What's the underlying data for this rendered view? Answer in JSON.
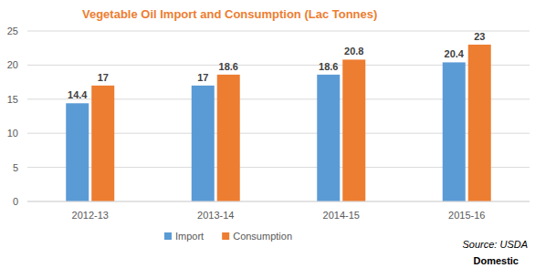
{
  "chart_data": {
    "type": "bar",
    "title": "Vegetable Oil Import and Consumption (Lac Tonnes)",
    "categories": [
      "2012-13",
      "2013-14",
      "2014-15",
      "2015-16"
    ],
    "series": [
      {
        "name": "Import",
        "color": "#5b9bd5",
        "values": [
          14.4,
          17,
          18.6,
          20.4
        ]
      },
      {
        "name": "Consumption",
        "color": "#ed7d31",
        "values": [
          17,
          18.6,
          20.8,
          23
        ]
      }
    ],
    "ylim": [
      0,
      25
    ],
    "yticks": [
      0,
      5,
      10,
      15,
      20,
      25
    ],
    "grid": true,
    "data_labels": true,
    "legend": "bottom",
    "annotations": [
      "Source: USDA",
      "Domestic"
    ]
  }
}
